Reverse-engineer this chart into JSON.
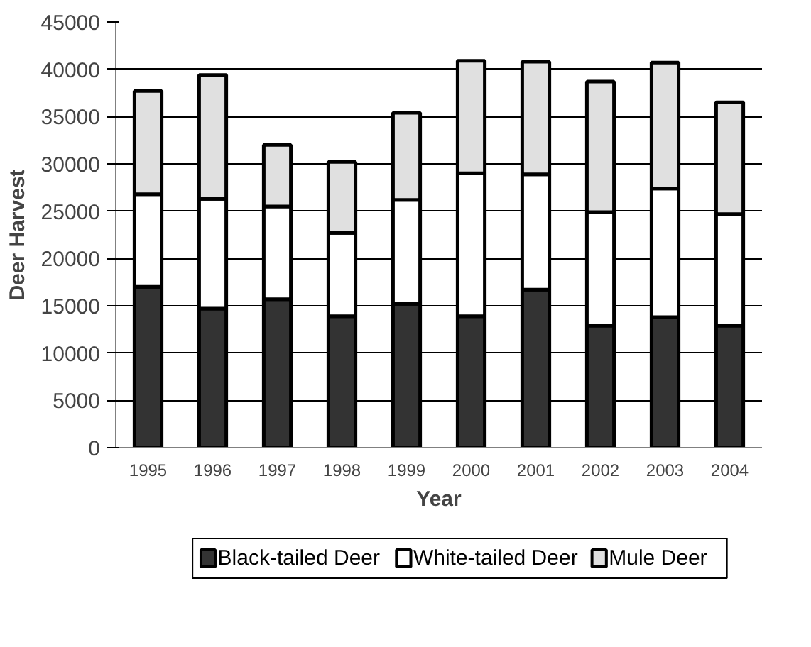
{
  "chart_data": {
    "type": "bar",
    "stacked": true,
    "xlabel": "Year",
    "ylabel": "Deer Harvest",
    "categories": [
      "1995",
      "1996",
      "1997",
      "1998",
      "1999",
      "2000",
      "2001",
      "2002",
      "2003",
      "2004"
    ],
    "series": [
      {
        "name": "Black-tailed Deer",
        "color": "#333333",
        "values": [
          17000,
          14700,
          15700,
          13900,
          15200,
          13900,
          16700,
          12900,
          13800,
          12900
        ]
      },
      {
        "name": "White-tailed Deer",
        "color": "#ffffff",
        "values": [
          9800,
          11600,
          9800,
          8800,
          11000,
          15100,
          12200,
          12000,
          13600,
          11800
        ]
      },
      {
        "name": "Mule Deer",
        "color": "#e0e0e0",
        "values": [
          10900,
          13100,
          6500,
          7500,
          9200,
          11900,
          11900,
          13800,
          13300,
          11800
        ]
      }
    ],
    "ylim": [
      0,
      45000
    ],
    "yticks": [
      0,
      5000,
      10000,
      15000,
      20000,
      25000,
      30000,
      35000,
      40000,
      45000
    ],
    "grid": "y",
    "legend": "bottom"
  }
}
